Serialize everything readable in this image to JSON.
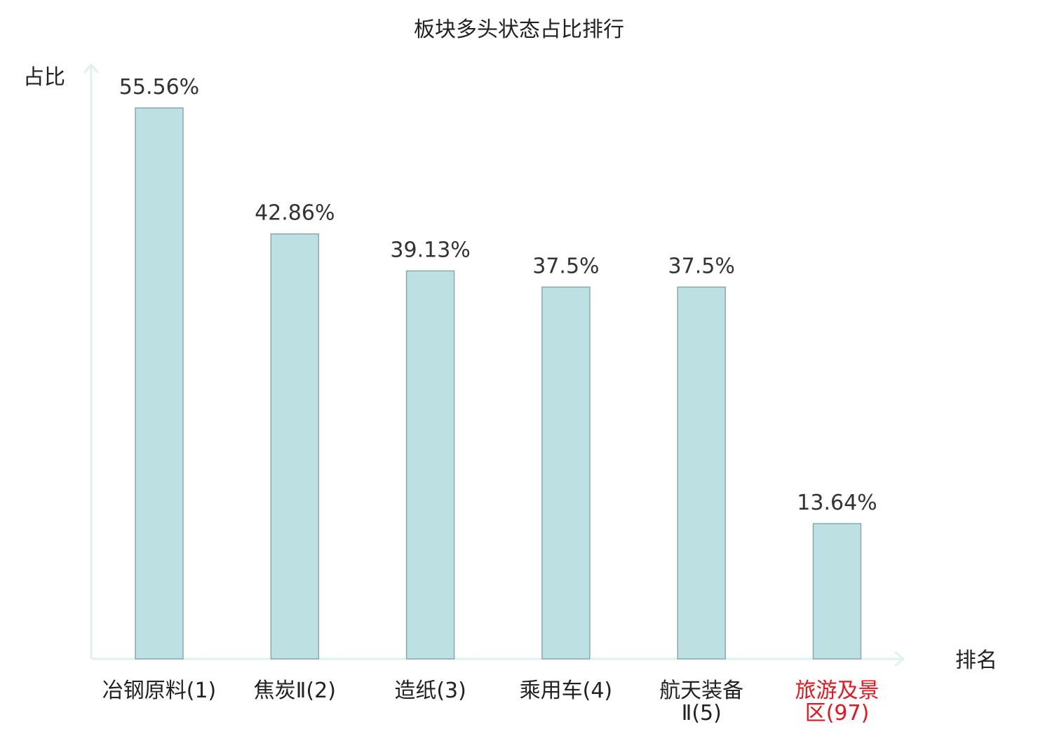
{
  "chart_data": {
    "type": "bar",
    "title": "板块多头状态占比排行",
    "ylabel": "占比",
    "xlabel": "排名",
    "categories": [
      [
        "冶钢原料(1)"
      ],
      [
        "焦炭Ⅱ(2)"
      ],
      [
        "造纸(3)"
      ],
      [
        "乘用车(4)"
      ],
      [
        "航天装备",
        "Ⅱ(5)"
      ],
      [
        "旅游及景",
        "区(97)"
      ]
    ],
    "values": [
      55.56,
      42.86,
      39.13,
      37.5,
      37.5,
      13.64
    ],
    "value_labels": [
      "55.56%",
      "42.86%",
      "39.13%",
      "37.5%",
      "37.5%",
      "13.64%"
    ],
    "highlight_index": 5,
    "ylim": [
      0,
      55.56
    ],
    "grid": false,
    "colors": {
      "bar_fill": "#bde0e3",
      "bar_stroke": "#8aa9ac",
      "axis": "#e0f2ef",
      "highlight_text": "#e8141e"
    }
  }
}
